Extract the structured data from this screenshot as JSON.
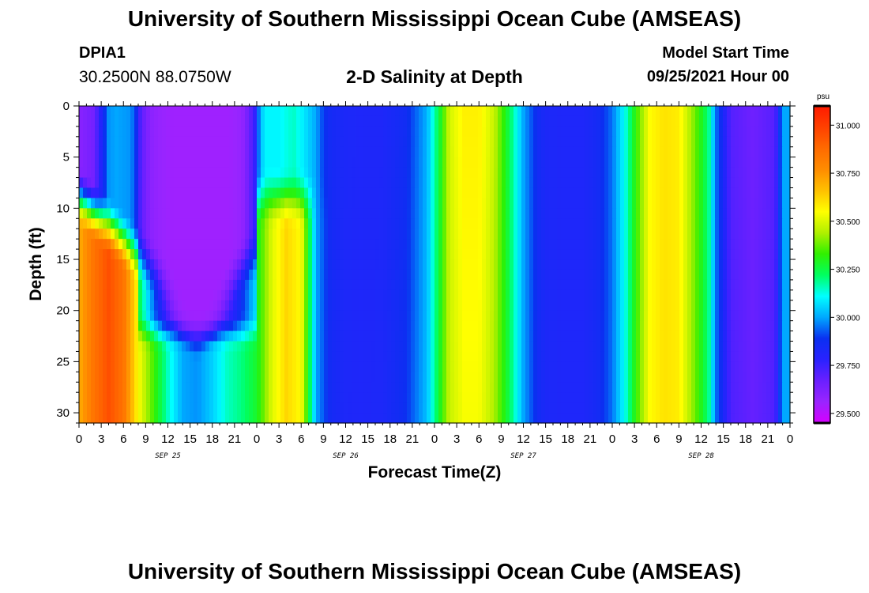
{
  "header": {
    "title": "University of Southern Mississippi Ocean Cube (AMSEAS)",
    "station": "DPIA1",
    "coordinates": "30.2500N  88.0750W",
    "plot_title": "2-D Salinity at Depth",
    "start_label": "Model Start Time",
    "start_value": "09/25/2021 Hour 00"
  },
  "footer": {
    "title": "University of Southern Mississippi Ocean Cube (AMSEAS)"
  },
  "colors": {
    "palette": [
      "#d600ff",
      "#9a24ff",
      "#6a20ff",
      "#2a22ff",
      "#0a30f0",
      "#00a8ff",
      "#00ffff",
      "#00ff60",
      "#30f000",
      "#b0f000",
      "#ffff00",
      "#ffc000",
      "#ff8c00",
      "#ff6a00",
      "#ff4000",
      "#ff1a00"
    ]
  },
  "chart_data": {
    "type": "heatmap",
    "title": "2-D Salinity at Depth",
    "xlabel": "Forecast Time(Z)",
    "ylabel": "Depth (ft)",
    "unit": "psu",
    "x_hours_range": [
      0,
      96
    ],
    "x_step_hours": 3,
    "xtick_labels": [
      "0",
      "3",
      "6",
      "9",
      "12",
      "15",
      "18",
      "21",
      "0",
      "3",
      "6",
      "9",
      "12",
      "15",
      "18",
      "21",
      "0",
      "3",
      "6",
      "9",
      "12",
      "15",
      "18",
      "21",
      "0",
      "3",
      "6",
      "9",
      "12",
      "15",
      "18",
      "21",
      "0"
    ],
    "date_labels": [
      {
        "hour": 12,
        "label": "SEP 25"
      },
      {
        "hour": 36,
        "label": "SEP 26"
      },
      {
        "hour": 60,
        "label": "SEP 27"
      },
      {
        "hour": 84,
        "label": "SEP 28"
      }
    ],
    "ylim": [
      0,
      31
    ],
    "yticks": [
      0,
      5,
      10,
      15,
      20,
      25,
      30
    ],
    "colorbar": {
      "min": 29.45,
      "max": 31.1,
      "ticks": [
        "29.500",
        "29.750",
        "30.000",
        "30.250",
        "30.500",
        "30.750",
        "31.000"
      ],
      "tick_values": [
        29.5,
        29.75,
        30.0,
        30.25,
        30.5,
        30.75,
        31.0
      ]
    },
    "surface_profile_hours": [
      0,
      2,
      4,
      5,
      7,
      9,
      10,
      13,
      15,
      20,
      22,
      24,
      25,
      27,
      29,
      30,
      32,
      33,
      34,
      36,
      38,
      41,
      44,
      47,
      48,
      49,
      50,
      52,
      54,
      56,
      58,
      60,
      62,
      63,
      65,
      68,
      70,
      72,
      74,
      75,
      77,
      79,
      81,
      83,
      85,
      86,
      87,
      88,
      91,
      94,
      95,
      96
    ],
    "surface_profile_psu": [
      29.6,
      29.65,
      29.98,
      30.0,
      29.98,
      29.7,
      29.62,
      29.55,
      29.55,
      29.55,
      29.6,
      29.9,
      30.1,
      30.1,
      30.15,
      30.1,
      30.0,
      29.9,
      29.85,
      29.83,
      29.82,
      29.82,
      29.85,
      30.0,
      30.15,
      30.3,
      30.5,
      30.6,
      30.6,
      30.5,
      30.25,
      30.0,
      29.86,
      29.83,
      29.82,
      29.82,
      29.85,
      29.95,
      30.15,
      30.3,
      30.55,
      30.6,
      30.58,
      30.4,
      30.2,
      29.95,
      29.83,
      29.7,
      29.65,
      29.7,
      30.0,
      30.0
    ],
    "bottom_profile_hours": [
      0,
      2,
      4,
      6,
      8,
      10,
      12,
      14,
      16,
      18,
      20,
      22,
      24,
      26,
      28,
      30,
      32,
      34,
      36,
      38,
      41,
      44,
      47,
      48,
      49,
      50,
      52,
      54,
      56,
      58,
      60,
      62,
      63,
      65,
      68,
      70,
      72,
      74,
      75,
      77,
      79,
      81,
      83,
      85,
      86,
      87,
      88,
      91,
      94,
      95,
      96
    ],
    "bottom_profile_psu": [
      30.7,
      30.85,
      30.95,
      30.85,
      30.55,
      30.35,
      30.15,
      30.0,
      29.98,
      30.05,
      30.15,
      30.2,
      30.28,
      30.5,
      30.62,
      30.55,
      30.0,
      29.85,
      29.82,
      29.82,
      29.83,
      29.9,
      30.05,
      30.2,
      30.35,
      30.45,
      30.5,
      30.5,
      30.4,
      30.25,
      30.0,
      29.86,
      29.83,
      29.82,
      29.82,
      29.85,
      29.95,
      30.15,
      30.3,
      30.55,
      30.6,
      30.58,
      30.4,
      30.2,
      29.95,
      29.83,
      29.75,
      29.72,
      29.75,
      30.0,
      30.0
    ],
    "features": [
      {
        "name": "low-salinity bowl",
        "center_hour": 16,
        "bottom_depth_ft": 22,
        "psu": 29.55
      },
      {
        "name": "early high-salinity column",
        "hours": [
          0,
          8
        ],
        "from_depth_ft": 15,
        "psu": 30.9
      },
      {
        "name": "sep26 high-salinity column",
        "hours": [
          26,
          32
        ],
        "from_depth_ft": 11,
        "psu": 30.6
      }
    ]
  }
}
